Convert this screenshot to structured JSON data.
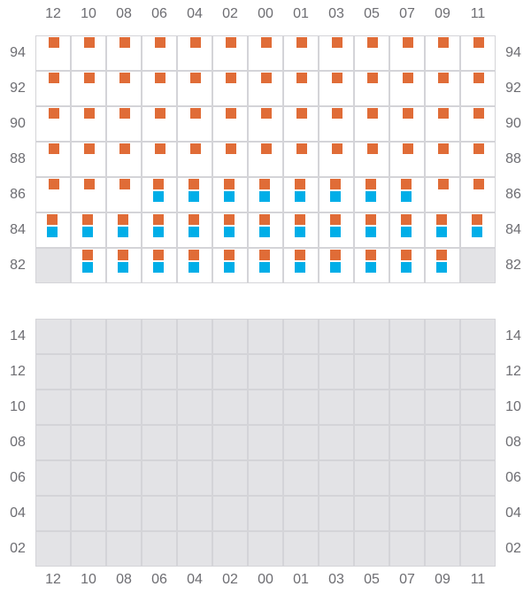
{
  "columns": [
    "12",
    "10",
    "08",
    "06",
    "04",
    "02",
    "00",
    "01",
    "03",
    "05",
    "07",
    "09",
    "11"
  ],
  "colors": {
    "orange": "#e06c37",
    "blue": "#00aee8",
    "disabled": "#e3e3e6",
    "border": "#d4d4d8"
  },
  "top_grid": {
    "rows": [
      {
        "label": "94",
        "cells": [
          "o",
          "o",
          "o",
          "o",
          "o",
          "o",
          "o",
          "o",
          "o",
          "o",
          "o",
          "o",
          "o"
        ]
      },
      {
        "label": "92",
        "cells": [
          "o",
          "o",
          "o",
          "o",
          "o",
          "o",
          "o",
          "o",
          "o",
          "o",
          "o",
          "o",
          "o"
        ]
      },
      {
        "label": "90",
        "cells": [
          "o",
          "o",
          "o",
          "o",
          "o",
          "o",
          "o",
          "o",
          "o",
          "o",
          "o",
          "o",
          "o"
        ]
      },
      {
        "label": "88",
        "cells": [
          "o",
          "o",
          "o",
          "o",
          "o",
          "o",
          "o",
          "o",
          "o",
          "o",
          "o",
          "o",
          "o"
        ]
      },
      {
        "label": "86",
        "cells": [
          "o",
          "o",
          "o",
          "ob",
          "ob",
          "ob",
          "ob",
          "ob",
          "ob",
          "ob",
          "ob",
          "o",
          "o"
        ]
      },
      {
        "label": "84",
        "cells": [
          "ob",
          "ob",
          "ob",
          "ob",
          "ob",
          "ob",
          "ob",
          "ob",
          "ob",
          "ob",
          "ob",
          "ob",
          "ob"
        ]
      },
      {
        "label": "82",
        "cells": [
          "x",
          "ob",
          "ob",
          "ob",
          "ob",
          "ob",
          "ob",
          "ob",
          "ob",
          "ob",
          "ob",
          "ob",
          "x"
        ]
      }
    ]
  },
  "bottom_grid": {
    "rows": [
      {
        "label": "14",
        "cells": [
          "x",
          "x",
          "x",
          "x",
          "x",
          "x",
          "x",
          "x",
          "x",
          "x",
          "x",
          "x",
          "x"
        ]
      },
      {
        "label": "12",
        "cells": [
          "x",
          "x",
          "x",
          "x",
          "x",
          "x",
          "x",
          "x",
          "x",
          "x",
          "x",
          "x",
          "x"
        ]
      },
      {
        "label": "10",
        "cells": [
          "x",
          "x",
          "x",
          "x",
          "x",
          "x",
          "x",
          "x",
          "x",
          "x",
          "x",
          "x",
          "x"
        ]
      },
      {
        "label": "08",
        "cells": [
          "x",
          "x",
          "x",
          "x",
          "x",
          "x",
          "x",
          "x",
          "x",
          "x",
          "x",
          "x",
          "x"
        ]
      },
      {
        "label": "06",
        "cells": [
          "x",
          "x",
          "x",
          "x",
          "x",
          "x",
          "x",
          "x",
          "x",
          "x",
          "x",
          "x",
          "x"
        ]
      },
      {
        "label": "04",
        "cells": [
          "x",
          "x",
          "x",
          "x",
          "x",
          "x",
          "x",
          "x",
          "x",
          "x",
          "x",
          "x",
          "x"
        ]
      },
      {
        "label": "02",
        "cells": [
          "x",
          "x",
          "x",
          "x",
          "x",
          "x",
          "x",
          "x",
          "x",
          "x",
          "x",
          "x",
          "x"
        ]
      }
    ]
  }
}
